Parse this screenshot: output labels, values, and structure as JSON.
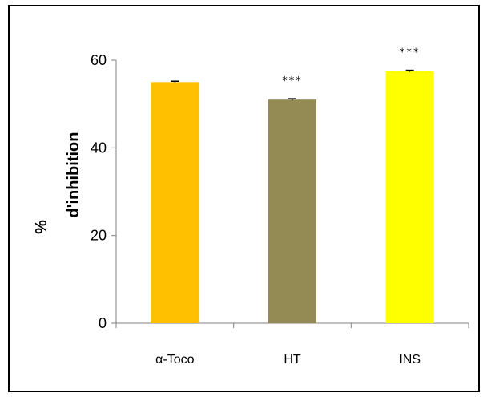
{
  "chart_data": {
    "type": "bar",
    "title": "",
    "xlabel": "",
    "ylabel_lines": [
      "%",
      "d'inhibition"
    ],
    "categories": [
      "α-Toco",
      "HT",
      "INS"
    ],
    "values": [
      55.0,
      51.0,
      57.5
    ],
    "errors": [
      0.2,
      0.2,
      0.2
    ],
    "significance": [
      "",
      "***",
      "***"
    ],
    "colors": [
      "#FFC000",
      "#948A54",
      "#FFFF00"
    ],
    "ylim": [
      0,
      60
    ],
    "yticks": [
      0,
      20,
      40,
      60
    ],
    "ytick_labels": [
      "0",
      "20",
      "40",
      "60"
    ],
    "grid": false,
    "legend": "none"
  }
}
